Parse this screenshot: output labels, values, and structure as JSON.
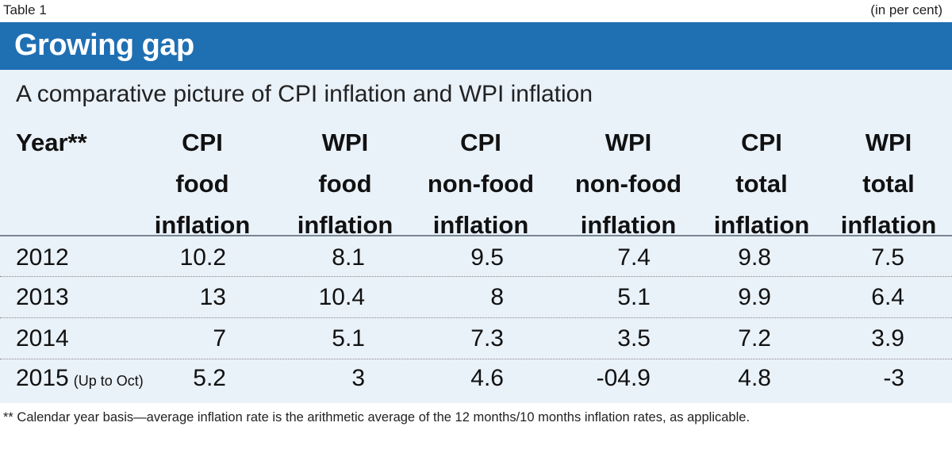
{
  "table_label": "Table 1",
  "unit_note": "(in per cent)",
  "title": "Growing gap",
  "subtitle": "A comparative picture of CPI inflation and WPI inflation",
  "columns": [
    {
      "lines": [
        "Year**"
      ]
    },
    {
      "lines": [
        "CPI",
        "food",
        "inflation"
      ]
    },
    {
      "lines": [
        "WPI",
        "food",
        "inflation"
      ]
    },
    {
      "lines": [
        "CPI",
        "non-food",
        "inflation"
      ]
    },
    {
      "lines": [
        "WPI",
        "non-food",
        "inflation"
      ]
    },
    {
      "lines": [
        "CPI",
        "total",
        "inflation"
      ]
    },
    {
      "lines": [
        "WPI",
        "total",
        "inflation"
      ]
    }
  ],
  "rows": [
    {
      "year": "2012",
      "note": "",
      "values": [
        "10.2",
        "8.1",
        "9.5",
        "7.4",
        "9.8",
        "7.5"
      ]
    },
    {
      "year": "2013",
      "note": "",
      "values": [
        "13",
        "10.4",
        "8",
        "5.1",
        "9.9",
        "6.4"
      ]
    },
    {
      "year": "2014",
      "note": "",
      "values": [
        "7",
        "5.1",
        "7.3",
        "3.5",
        "7.2",
        "3.9"
      ]
    },
    {
      "year": "2015",
      "note": "(Up to Oct)",
      "values": [
        "5.2",
        "3",
        "4.6",
        "-04.9",
        "4.8",
        "-3"
      ]
    }
  ],
  "footnote": "** Calendar year basis—average inflation rate is the arithmetic average of the 12 months/10 months inflation rates, as applicable.",
  "colors": {
    "header_bar": "#1f6fb3",
    "panel_background": "#e9f1f9"
  }
}
